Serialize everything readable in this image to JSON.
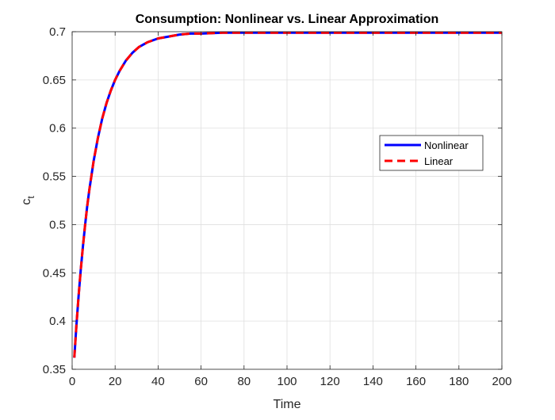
{
  "chart_data": {
    "type": "line",
    "title": "Consumption: Nonlinear vs. Linear Approximation",
    "xlabel": "Time",
    "ylabel": "c",
    "ylabel_subscript": "t",
    "xlim": [
      0,
      200
    ],
    "ylim": [
      0.35,
      0.7
    ],
    "xticks": [
      0,
      20,
      40,
      60,
      80,
      100,
      120,
      140,
      160,
      180,
      200
    ],
    "yticks": [
      0.35,
      0.4,
      0.45,
      0.5,
      0.55,
      0.6,
      0.65,
      0.7
    ],
    "xtick_labels": [
      "0",
      "20",
      "40",
      "60",
      "80",
      "100",
      "120",
      "140",
      "160",
      "180",
      "200"
    ],
    "ytick_labels": [
      "0.35",
      "0.4",
      "0.45",
      "0.5",
      "0.55",
      "0.6",
      "0.65",
      "0.7"
    ],
    "grid": true,
    "legend_position": "right-middle",
    "series": [
      {
        "name": "Nonlinear",
        "color": "#0000ff",
        "style": "solid",
        "x": [
          1,
          2,
          3,
          4,
          5,
          6,
          7,
          8,
          10,
          12,
          14,
          16,
          18,
          20,
          22,
          25,
          28,
          31,
          35,
          40,
          45,
          50,
          55,
          60,
          70,
          80,
          100,
          120,
          140,
          160,
          180,
          200
        ],
        "y": [
          0.362,
          0.396,
          0.426,
          0.453,
          0.477,
          0.499,
          0.519,
          0.536,
          0.566,
          0.59,
          0.61,
          0.626,
          0.639,
          0.65,
          0.659,
          0.67,
          0.678,
          0.684,
          0.689,
          0.693,
          0.695,
          0.697,
          0.698,
          0.698,
          0.699,
          0.699,
          0.699,
          0.699,
          0.699,
          0.699,
          0.699,
          0.699
        ]
      },
      {
        "name": "Linear",
        "color": "#ff0000",
        "style": "dashed",
        "x": [
          1,
          2,
          3,
          4,
          5,
          6,
          7,
          8,
          10,
          12,
          14,
          16,
          18,
          20,
          22,
          25,
          28,
          31,
          35,
          40,
          45,
          50,
          55,
          60,
          70,
          80,
          100,
          120,
          140,
          160,
          180,
          200
        ],
        "y": [
          0.362,
          0.396,
          0.426,
          0.453,
          0.477,
          0.499,
          0.519,
          0.536,
          0.566,
          0.59,
          0.61,
          0.626,
          0.639,
          0.65,
          0.659,
          0.67,
          0.678,
          0.684,
          0.689,
          0.693,
          0.695,
          0.697,
          0.698,
          0.698,
          0.699,
          0.699,
          0.699,
          0.699,
          0.699,
          0.699,
          0.699,
          0.699
        ]
      }
    ]
  }
}
